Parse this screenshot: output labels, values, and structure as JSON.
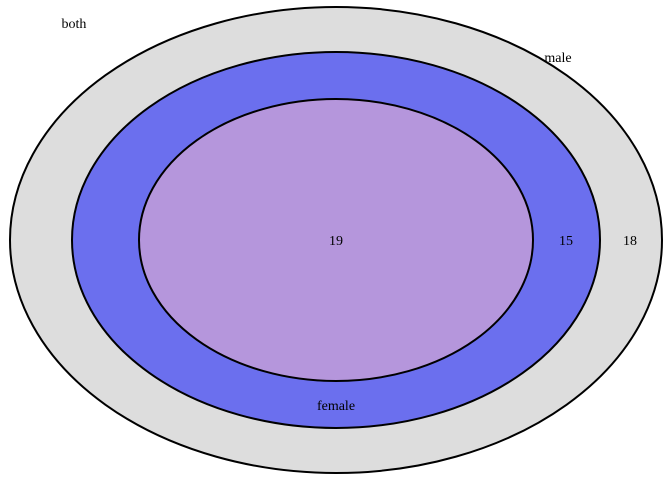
{
  "diagram": {
    "type": "nested-venn",
    "sets": [
      {
        "id": "outer",
        "label": "both",
        "color": "#dddddd",
        "count": "18"
      },
      {
        "id": "middle",
        "label": "male",
        "color": "#6b6fee",
        "count": "15"
      },
      {
        "id": "inner",
        "label": "female",
        "color": "#b596dc",
        "count": "19"
      }
    ]
  }
}
